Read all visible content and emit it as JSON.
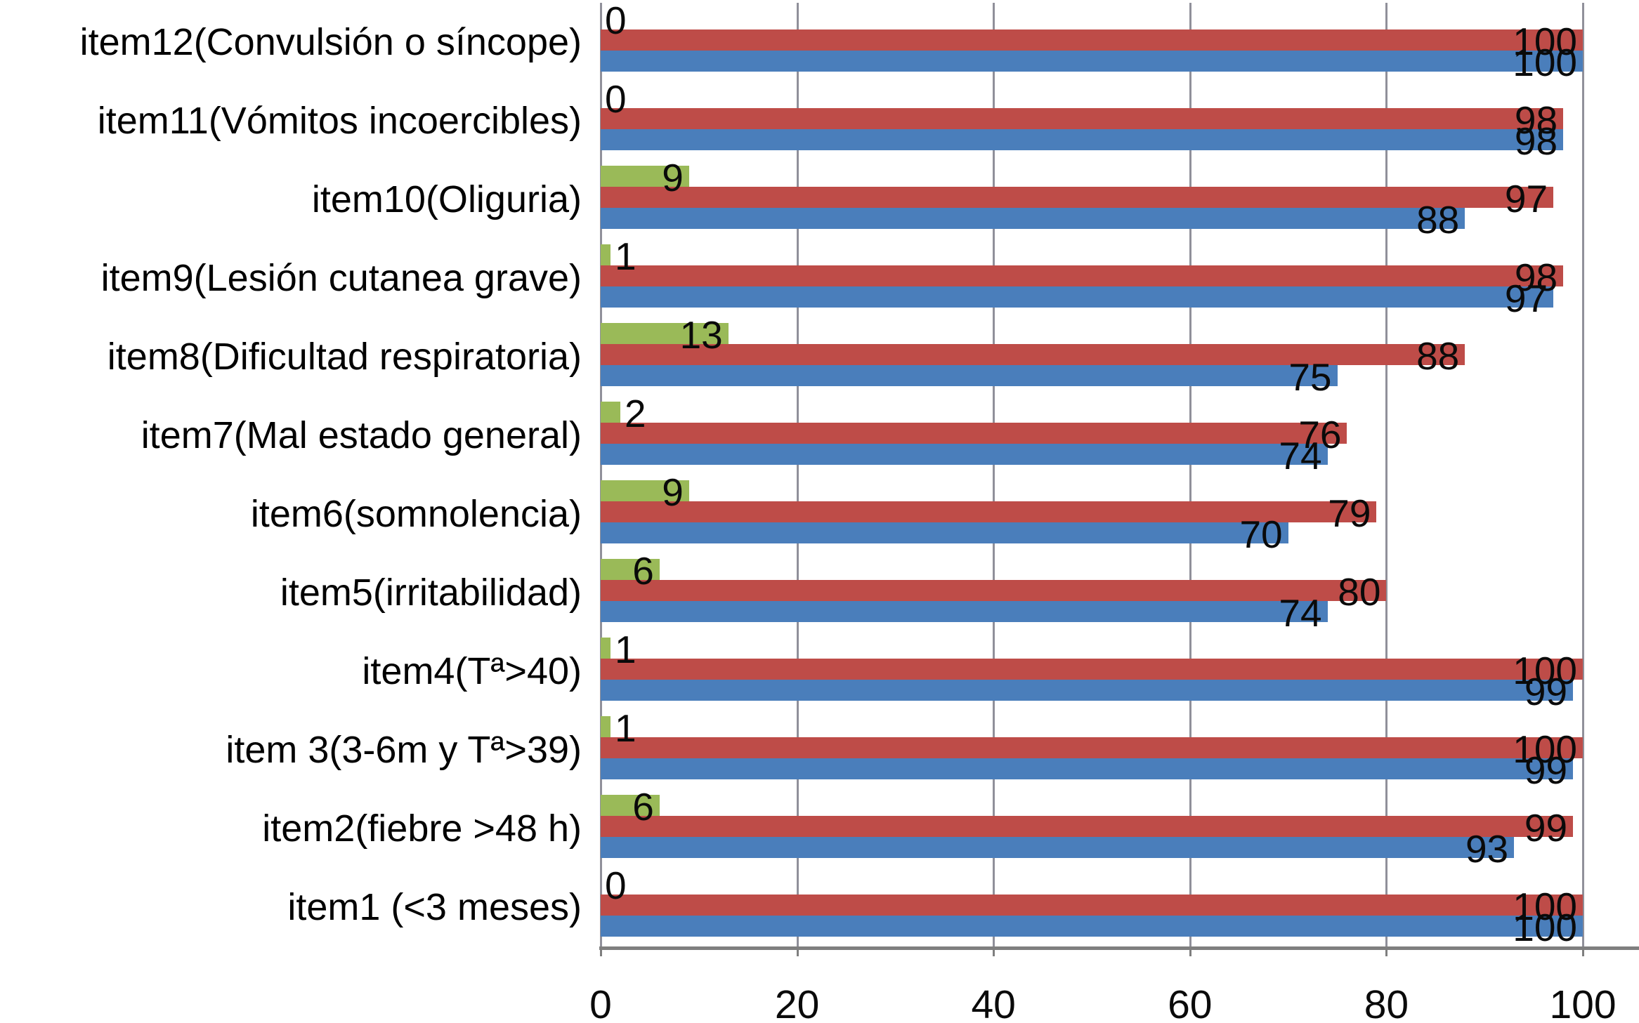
{
  "chart_data": {
    "type": "bar",
    "orientation": "horizontal",
    "title": "",
    "xlabel": "",
    "ylabel": "",
    "xlim": [
      0,
      100
    ],
    "x_ticks": [
      0,
      20,
      40,
      60,
      80,
      100
    ],
    "grid": "vertical",
    "legend": "none",
    "categories": [
      "item12(Convulsión o síncope)",
      "item11(Vómitos incoercibles)",
      "item10(Oliguria)",
      "item9(Lesión cutanea grave)",
      "item8(Dificultad respiratoria)",
      "item7(Mal estado general)",
      "item6(somnolencia)",
      "item5(irritabilidad)",
      "item4(Tª>40)",
      "item 3(3-6m y Tª>39)",
      "item2(fiebre >48 h)",
      "item1 (<3 meses)"
    ],
    "series": [
      {
        "name": "green",
        "color": "#9ABA58",
        "values": [
          0,
          0,
          9,
          1,
          13,
          2,
          9,
          6,
          1,
          1,
          6,
          0
        ]
      },
      {
        "name": "red",
        "color": "#BE4C48",
        "values": [
          100,
          98,
          97,
          98,
          88,
          76,
          79,
          80,
          100,
          100,
          99,
          100
        ]
      },
      {
        "name": "blue",
        "color": "#4A7EBB",
        "values": [
          100,
          98,
          88,
          97,
          75,
          74,
          70,
          74,
          99,
          99,
          93,
          100
        ]
      }
    ]
  },
  "colors": {
    "gridline": "#90909A",
    "axis": "#7F7F7F",
    "label_text": "#000000",
    "background": "#FFFFFF"
  }
}
